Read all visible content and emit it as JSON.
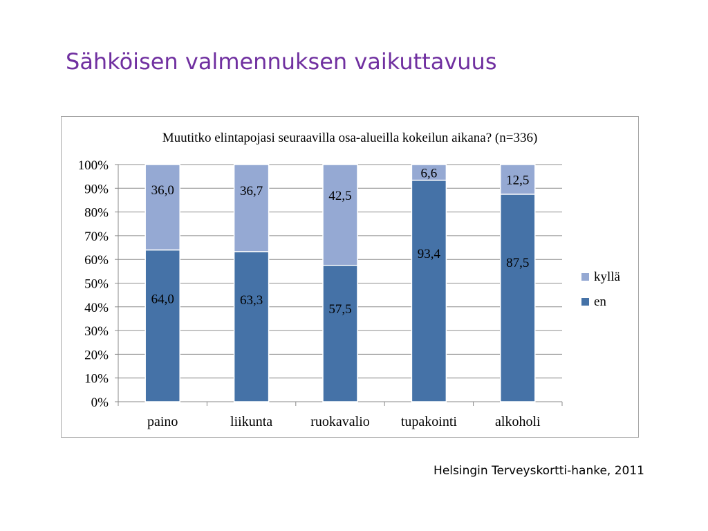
{
  "slide": {
    "title": "Sähköisen valmennuksen vaikuttavuus",
    "source": "Helsingin Terveyskortti-hanke, 2011"
  },
  "chart_data": {
    "type": "bar",
    "stacked": true,
    "title": "Muutitko elintapojasi seuraavilla osa-alueilla kokeilun aikana? (n=336)",
    "xlabel": "",
    "ylabel": "",
    "ylim": [
      0,
      100
    ],
    "y_ticks": [
      "0%",
      "10%",
      "20%",
      "30%",
      "40%",
      "50%",
      "60%",
      "70%",
      "80%",
      "90%",
      "100%"
    ],
    "categories": [
      "paino",
      "liikunta",
      "ruokavalio",
      "tupakointi",
      "alkoholi"
    ],
    "series": [
      {
        "name": "en",
        "color": "#4572a7",
        "values": [
          64.0,
          63.3,
          57.5,
          93.4,
          87.5
        ],
        "labels": [
          "64,0",
          "63,3",
          "57,5",
          "93,4",
          "87,5"
        ]
      },
      {
        "name": "kyllä",
        "color": "#95a9d3",
        "values": [
          36.0,
          36.7,
          42.5,
          6.6,
          12.5
        ],
        "labels": [
          "36,0",
          "36,7",
          "42,5",
          "6,6",
          "12,5"
        ]
      }
    ],
    "legend": [
      "kyllä",
      "en"
    ],
    "legend_position": "right",
    "grid": true
  }
}
